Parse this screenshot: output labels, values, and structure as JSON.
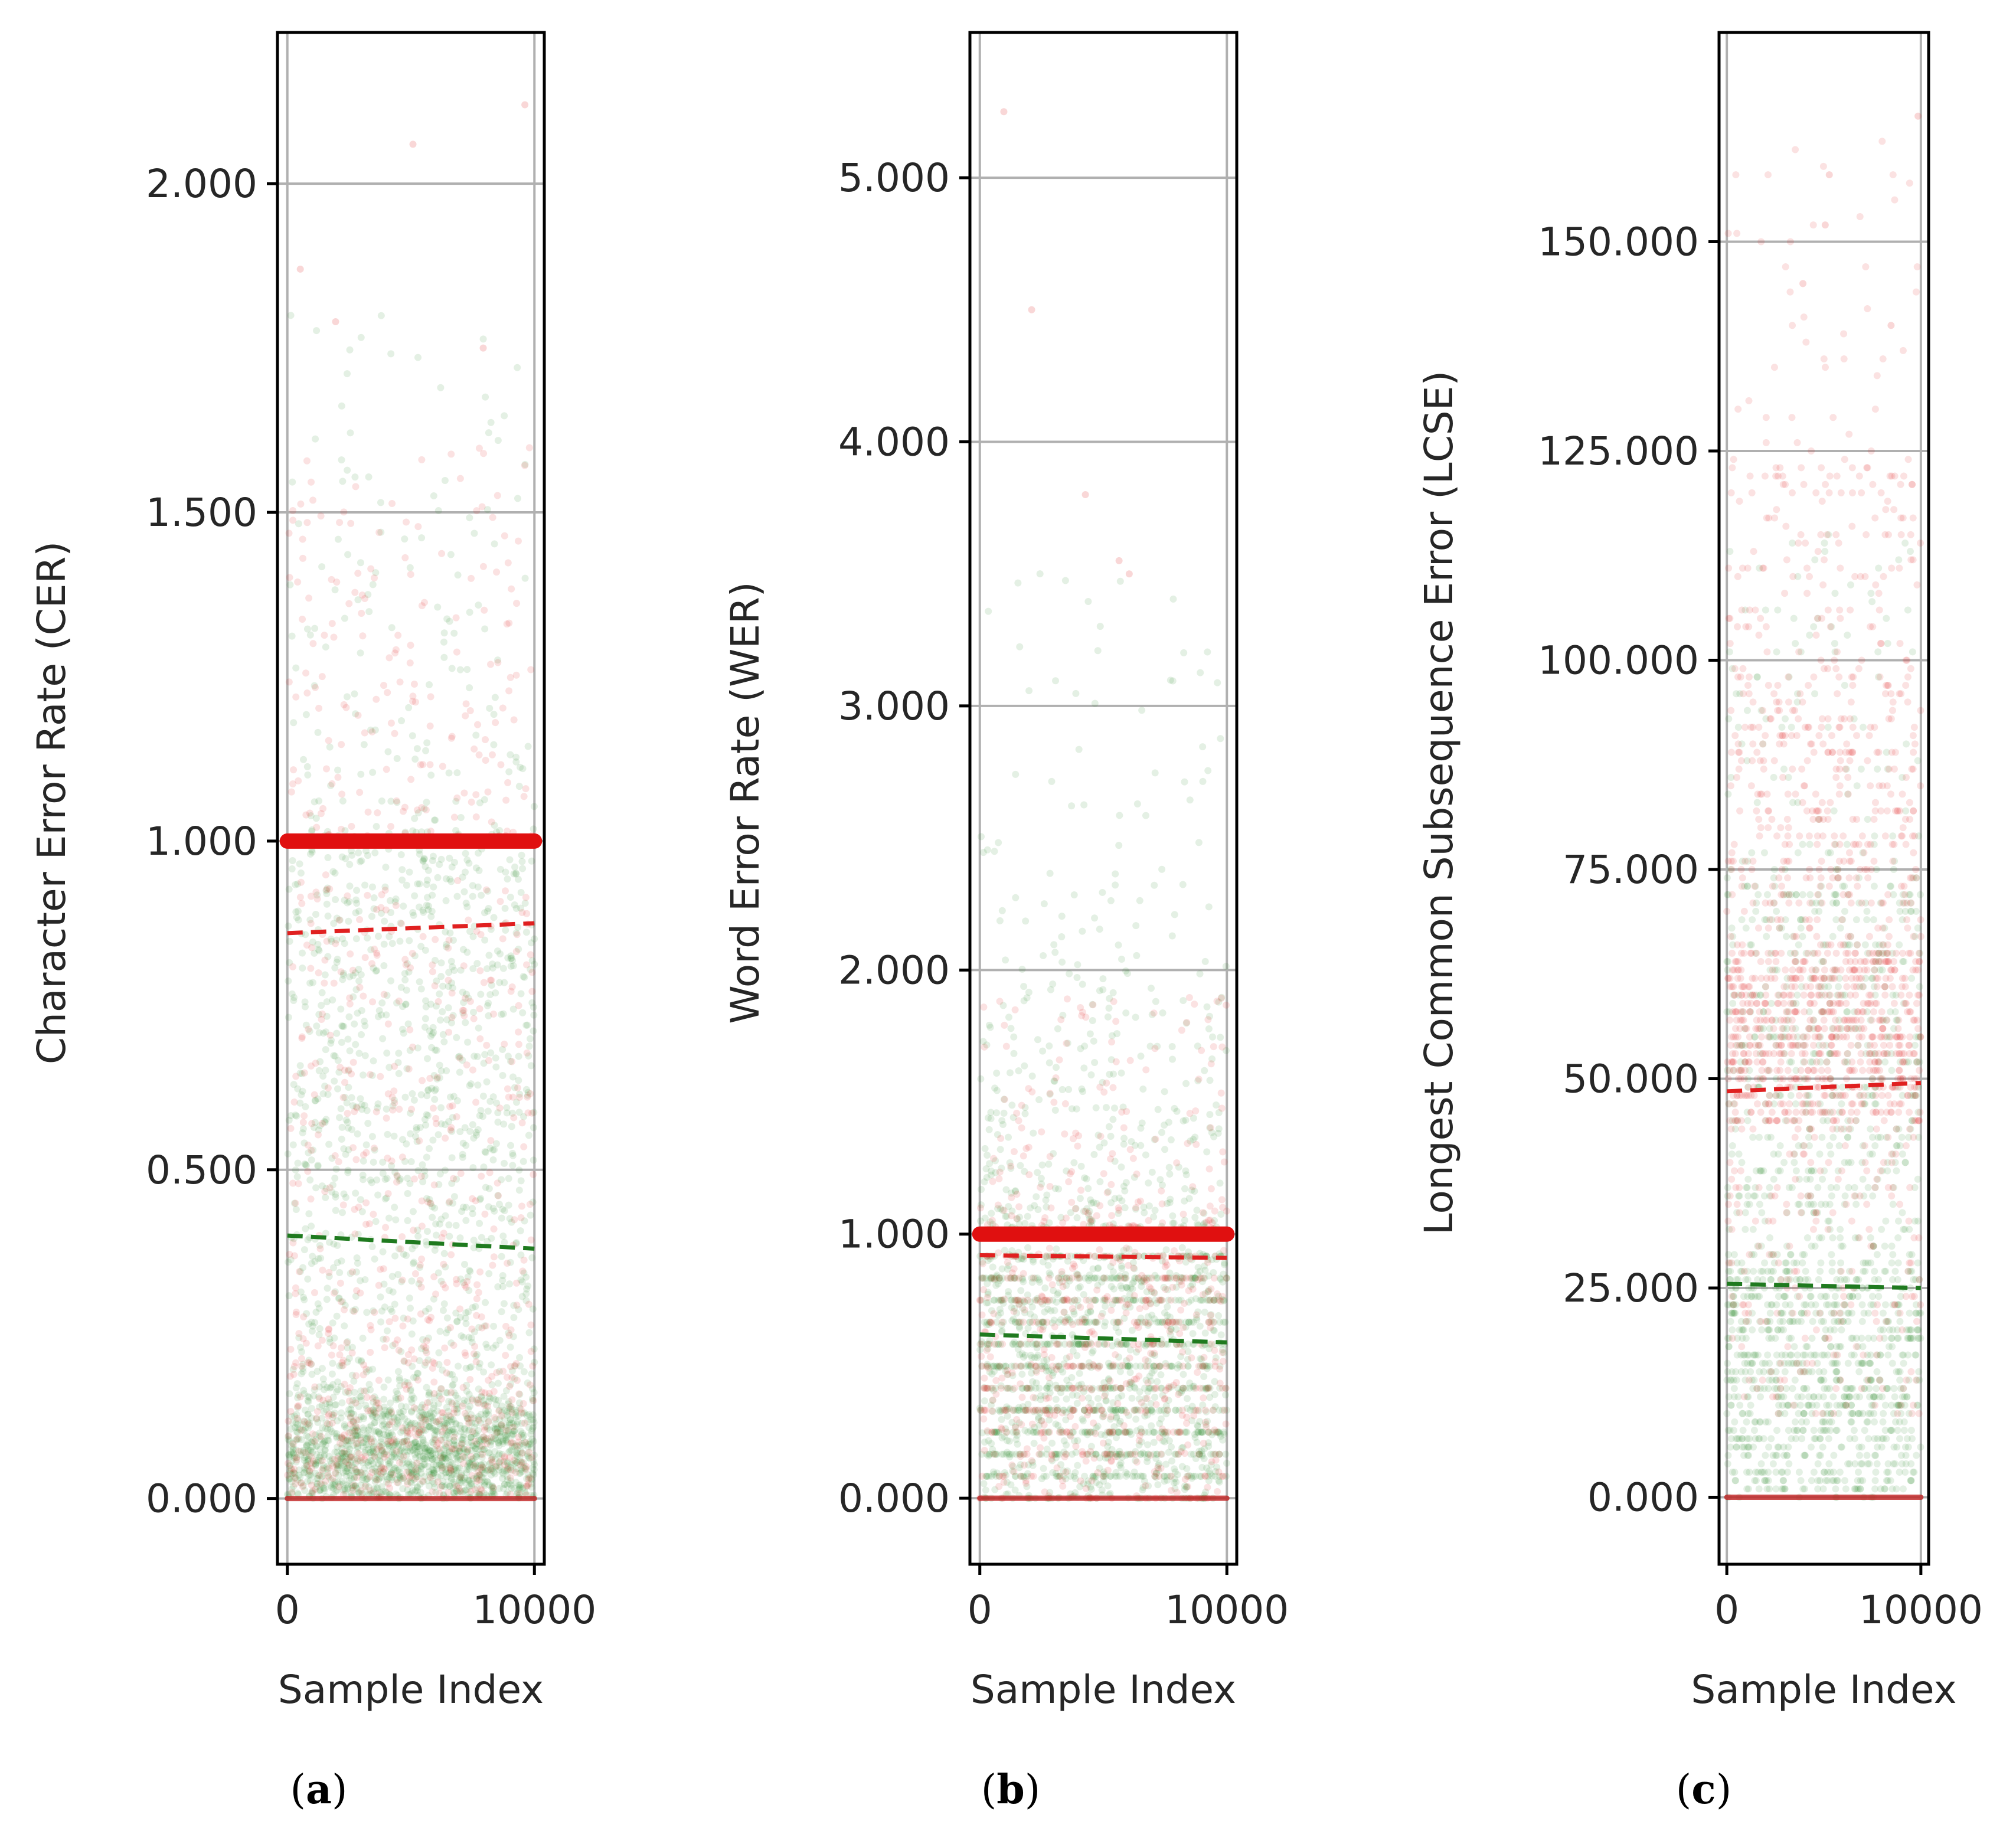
{
  "chart_data": [
    {
      "type": "scatter",
      "panel_label": "a",
      "ylabel": "Character Error Rate (CER)",
      "xlabel": "Sample Index",
      "ylim": [
        -0.1,
        2.23
      ],
      "xlim": [
        -400,
        10400
      ],
      "yticks": [
        0,
        0.5,
        1,
        1.5,
        2
      ],
      "ytick_labels": [
        "0.000",
        "0.500",
        "1.000",
        "1.500",
        "2.000"
      ],
      "xticks": [
        0,
        10000
      ],
      "xtick_labels": [
        "0",
        "10000"
      ],
      "grid": true,
      "series": [
        {
          "name": "green samples",
          "color": "#2e8b2e",
          "distribution": "dense near 0–0.15, spread to 1.0, sparse above 1.0"
        },
        {
          "name": "red samples",
          "color": "#e02020",
          "distribution": "band at 0.0, heavy band at 1.0, sparse above 1.0"
        }
      ],
      "bands": [
        {
          "name": "red line at 1.0",
          "y": 1.0,
          "color": "#e01010"
        },
        {
          "name": "red line at 0.0",
          "y": 0.0,
          "color": "#c02020"
        }
      ],
      "trend_lines": [
        {
          "name": "red mean trend",
          "color": "#e02020",
          "x": [
            0,
            10000
          ],
          "y": [
            0.86,
            0.875
          ]
        },
        {
          "name": "green mean trend",
          "color": "#1f7a1f",
          "x": [
            0,
            10000
          ],
          "y": [
            0.4,
            0.38
          ]
        }
      ],
      "outliers": [
        2.12,
        2.06,
        1.87,
        1.79,
        1.75
      ]
    },
    {
      "type": "scatter",
      "panel_label": "b",
      "ylabel": "Word Error Rate (WER)",
      "xlabel": "Sample Index",
      "ylim": [
        -0.25,
        5.55
      ],
      "xlim": [
        -400,
        10400
      ],
      "yticks": [
        0,
        1,
        2,
        3,
        4,
        5
      ],
      "ytick_labels": [
        "0.000",
        "1.000",
        "2.000",
        "3.000",
        "4.000",
        "5.000"
      ],
      "xticks": [
        0,
        10000
      ],
      "xtick_labels": [
        "0",
        "10000"
      ],
      "grid": true,
      "series": [
        {
          "name": "green samples",
          "color": "#2e8b2e",
          "distribution": "dense 0–1.0 with discrete horizontal bands, sparse to 3.8"
        },
        {
          "name": "red samples",
          "color": "#e02020",
          "distribution": "band at 0.0, heavy band at 1.0, sparse above"
        }
      ],
      "bands": [
        {
          "name": "red line at 1.0",
          "y": 1.0,
          "color": "#e01010"
        },
        {
          "name": "red line at 0.0",
          "y": 0.0,
          "color": "#c02020"
        }
      ],
      "trend_lines": [
        {
          "name": "red mean trend",
          "color": "#e02020",
          "x": [
            0,
            10000
          ],
          "y": [
            0.92,
            0.91
          ]
        },
        {
          "name": "green mean trend",
          "color": "#1f7a1f",
          "x": [
            0,
            10000
          ],
          "y": [
            0.62,
            0.59
          ]
        }
      ],
      "outliers": [
        5.25,
        4.5,
        3.8,
        3.55,
        3.5
      ]
    },
    {
      "type": "scatter",
      "panel_label": "c",
      "ylabel": "Longest Common Subsequence Error (LCSE)",
      "xlabel": "Sample Index",
      "ylim": [
        -8,
        175
      ],
      "xlim": [
        -400,
        10400
      ],
      "yticks": [
        0,
        25,
        50,
        75,
        100,
        125,
        150
      ],
      "ytick_labels": [
        "0.000",
        "25.000",
        "50.000",
        "75.000",
        "100.000",
        "125.000",
        "150.000"
      ],
      "xticks": [
        0,
        10000
      ],
      "xtick_labels": [
        "0",
        "10000"
      ],
      "grid": true,
      "series": [
        {
          "name": "green samples",
          "color": "#2e8b2e",
          "distribution": "dense discrete bands 0–30, spread to ~110"
        },
        {
          "name": "red samples",
          "color": "#e02020",
          "distribution": "heavy 45–65, spread 10–130, sparse to 165"
        }
      ],
      "bands": [
        {
          "name": "red line at 0.0",
          "y": 0,
          "color": "#c02020"
        }
      ],
      "trend_lines": [
        {
          "name": "red mean trend",
          "color": "#e02020",
          "x": [
            0,
            10000
          ],
          "y": [
            48.5,
            49.5
          ]
        },
        {
          "name": "green mean trend",
          "color": "#1f7a1f",
          "x": [
            0,
            10000
          ],
          "y": [
            25.5,
            25.0
          ]
        }
      ],
      "outliers": [
        165,
        158,
        152,
        145,
        140
      ]
    }
  ]
}
